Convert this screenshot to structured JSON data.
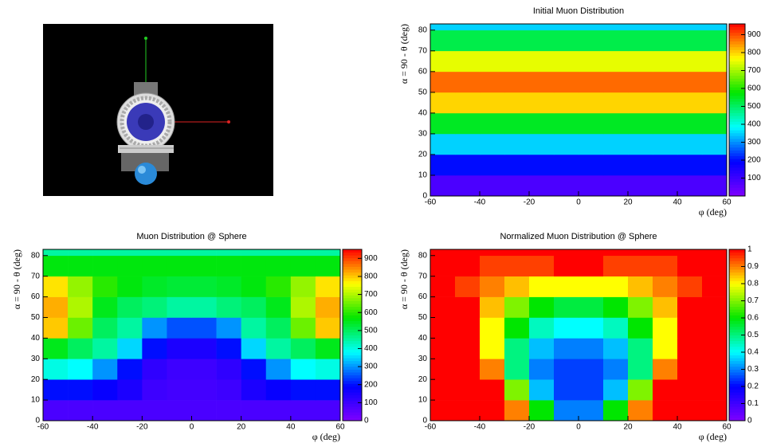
{
  "chart_data": [
    {
      "type": "heatmap",
      "title": "Initial Muon Distribution",
      "xlabel": "φ (deg)",
      "ylabel": "α = 90 - θ (deg)",
      "colormap": "rainbow",
      "x_bins": [
        -60,
        -50,
        -40,
        -30,
        -20,
        -10,
        0,
        10,
        20,
        30,
        40,
        50,
        60
      ],
      "y_bins": [
        0,
        10,
        20,
        30,
        40,
        50,
        60,
        70,
        80,
        83
      ],
      "z": [
        [
          80,
          80,
          80,
          80,
          80,
          80,
          80,
          80,
          80,
          80,
          80,
          80
        ],
        [
          200,
          200,
          200,
          200,
          200,
          200,
          200,
          200,
          200,
          200,
          200,
          200
        ],
        [
          350,
          350,
          350,
          350,
          350,
          350,
          350,
          350,
          350,
          350,
          350,
          350
        ],
        [
          550,
          550,
          550,
          550,
          550,
          550,
          550,
          550,
          550,
          550,
          550,
          550
        ],
        [
          800,
          800,
          800,
          800,
          800,
          800,
          800,
          800,
          800,
          800,
          800,
          800
        ],
        [
          880,
          880,
          880,
          880,
          880,
          880,
          880,
          880,
          880,
          880,
          880,
          880
        ],
        [
          750,
          750,
          750,
          750,
          750,
          750,
          750,
          750,
          750,
          750,
          750,
          750
        ],
        [
          520,
          520,
          520,
          520,
          520,
          520,
          520,
          520,
          520,
          520,
          520,
          520
        ],
        [
          350,
          350,
          350,
          350,
          350,
          350,
          350,
          350,
          350,
          350,
          350,
          350
        ]
      ],
      "xlim": [
        -60,
        60
      ],
      "ylim": [
        0,
        83
      ],
      "xticks": [
        -60,
        -40,
        -20,
        0,
        20,
        40,
        60
      ],
      "yticks": [
        0,
        10,
        20,
        30,
        40,
        50,
        60,
        70,
        80
      ],
      "zlim": [
        0,
        960
      ],
      "zticks": [
        100,
        200,
        300,
        400,
        500,
        600,
        700,
        800,
        900
      ]
    },
    {
      "type": "heatmap",
      "title": "Muon Distribution @ Sphere",
      "xlabel": "φ (deg)",
      "ylabel": "α = 90 - θ (deg)",
      "colormap": "rainbow",
      "x_bins": [
        -60,
        -50,
        -40,
        -30,
        -20,
        -10,
        0,
        10,
        20,
        30,
        40,
        50,
        60
      ],
      "y_bins": [
        0,
        10,
        20,
        30,
        40,
        50,
        60,
        70,
        80,
        83
      ],
      "z": [
        [
          80,
          80,
          80,
          80,
          80,
          80,
          80,
          80,
          80,
          80,
          80,
          80
        ],
        [
          200,
          200,
          180,
          150,
          100,
          90,
          90,
          100,
          150,
          180,
          200,
          200
        ],
        [
          400,
          380,
          300,
          200,
          120,
          100,
          100,
          120,
          200,
          300,
          380,
          400
        ],
        [
          550,
          500,
          450,
          350,
          200,
          150,
          150,
          200,
          350,
          450,
          500,
          550
        ],
        [
          800,
          650,
          500,
          450,
          300,
          250,
          250,
          300,
          450,
          500,
          650,
          800
        ],
        [
          820,
          700,
          550,
          500,
          480,
          450,
          450,
          480,
          500,
          550,
          700,
          820
        ],
        [
          780,
          680,
          600,
          560,
          540,
          530,
          530,
          540,
          560,
          600,
          680,
          780
        ],
        [
          560,
          560,
          560,
          560,
          560,
          560,
          560,
          560,
          560,
          560,
          560,
          560
        ],
        [
          450,
          450,
          450,
          450,
          450,
          450,
          450,
          450,
          450,
          450,
          450,
          450
        ]
      ],
      "xlim": [
        -60,
        60
      ],
      "ylim": [
        0,
        83
      ],
      "xticks": [
        -60,
        -40,
        -20,
        0,
        20,
        40,
        60
      ],
      "yticks": [
        0,
        10,
        20,
        30,
        40,
        50,
        60,
        70,
        80
      ],
      "zlim": [
        0,
        950
      ],
      "zticks": [
        0,
        100,
        200,
        300,
        400,
        500,
        600,
        700,
        800,
        900
      ]
    },
    {
      "type": "heatmap",
      "title": "Normalized Muon Distribution @ Sphere",
      "xlabel": "φ (deg)",
      "ylabel": "α = 90 - θ (deg)",
      "colormap": "rainbow",
      "x_bins": [
        -60,
        -50,
        -40,
        -30,
        -20,
        -10,
        0,
        10,
        20,
        30,
        40,
        50,
        60
      ],
      "y_bins": [
        0,
        10,
        20,
        30,
        40,
        50,
        60,
        70,
        80,
        83
      ],
      "z": [
        [
          1,
          1,
          1,
          0.9,
          0.6,
          0.3,
          0.3,
          0.6,
          0.9,
          1,
          1,
          1
        ],
        [
          1,
          1,
          1,
          0.7,
          0.35,
          0.25,
          0.25,
          0.35,
          0.7,
          1,
          1,
          1
        ],
        [
          1,
          1,
          0.9,
          0.5,
          0.3,
          0.25,
          0.25,
          0.3,
          0.5,
          0.9,
          1,
          1
        ],
        [
          1,
          1,
          0.8,
          0.5,
          0.35,
          0.3,
          0.3,
          0.35,
          0.5,
          0.8,
          1,
          1
        ],
        [
          1,
          1,
          0.8,
          0.6,
          0.45,
          0.4,
          0.4,
          0.45,
          0.6,
          0.8,
          1,
          1
        ],
        [
          1,
          1,
          0.85,
          0.7,
          0.6,
          0.55,
          0.55,
          0.6,
          0.7,
          0.85,
          1,
          1
        ],
        [
          1,
          0.95,
          0.9,
          0.85,
          0.8,
          0.8,
          0.8,
          0.8,
          0.85,
          0.9,
          0.95,
          1
        ],
        [
          1,
          1,
          0.95,
          0.95,
          0.95,
          1,
          1,
          0.95,
          0.95,
          0.95,
          1,
          1
        ],
        [
          1,
          1,
          1,
          1,
          1,
          1,
          1,
          1,
          1,
          1,
          1,
          1
        ]
      ],
      "xlim": [
        -60,
        60
      ],
      "ylim": [
        0,
        83
      ],
      "xticks": [
        -60,
        -40,
        -20,
        0,
        20,
        40,
        60
      ],
      "yticks": [
        0,
        10,
        20,
        30,
        40,
        50,
        60,
        70,
        80
      ],
      "zlim": [
        0,
        1
      ],
      "zticks": [
        0,
        0.1,
        0.2,
        0.3,
        0.4,
        0.5,
        0.6,
        0.7,
        0.8,
        0.9,
        1
      ]
    }
  ]
}
